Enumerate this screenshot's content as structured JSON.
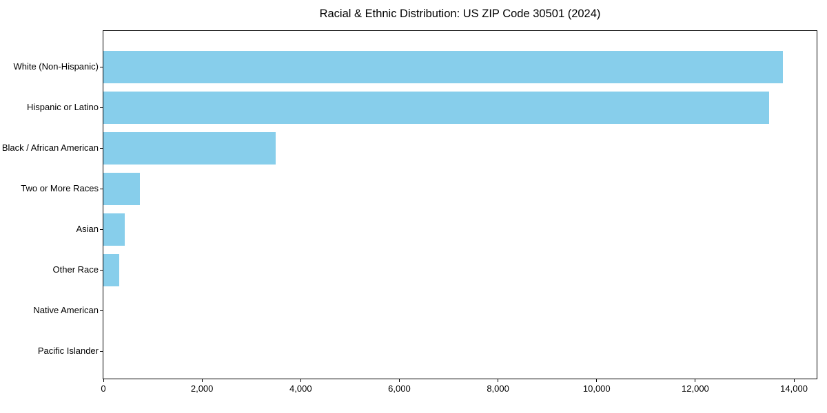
{
  "figure": {
    "background": "#ffffff",
    "plot_border_color": "#000000",
    "text_color": "#000000"
  },
  "chart_data": {
    "type": "bar",
    "orientation": "horizontal",
    "title": "Racial & Ethnic Distribution: US ZIP Code 30501 (2024)",
    "categories": [
      "White (Non-Hispanic)",
      "Hispanic or Latino",
      "Black / African American",
      "Two or More Races",
      "Asian",
      "Other Race",
      "Native American",
      "Pacific Islander"
    ],
    "values": [
      13770,
      13490,
      3490,
      740,
      440,
      320,
      0,
      0
    ],
    "bar_color": "#87CEEB",
    "xlabel": "",
    "ylabel": "",
    "xlim": [
      0,
      14460
    ],
    "x_ticks": [
      0,
      2000,
      4000,
      6000,
      8000,
      10000,
      12000,
      14000
    ],
    "x_tick_labels": [
      "0",
      "2,000",
      "4,000",
      "6,000",
      "8,000",
      "10,000",
      "12,000",
      "14,000"
    ],
    "grid": false,
    "legend_position": "none"
  }
}
